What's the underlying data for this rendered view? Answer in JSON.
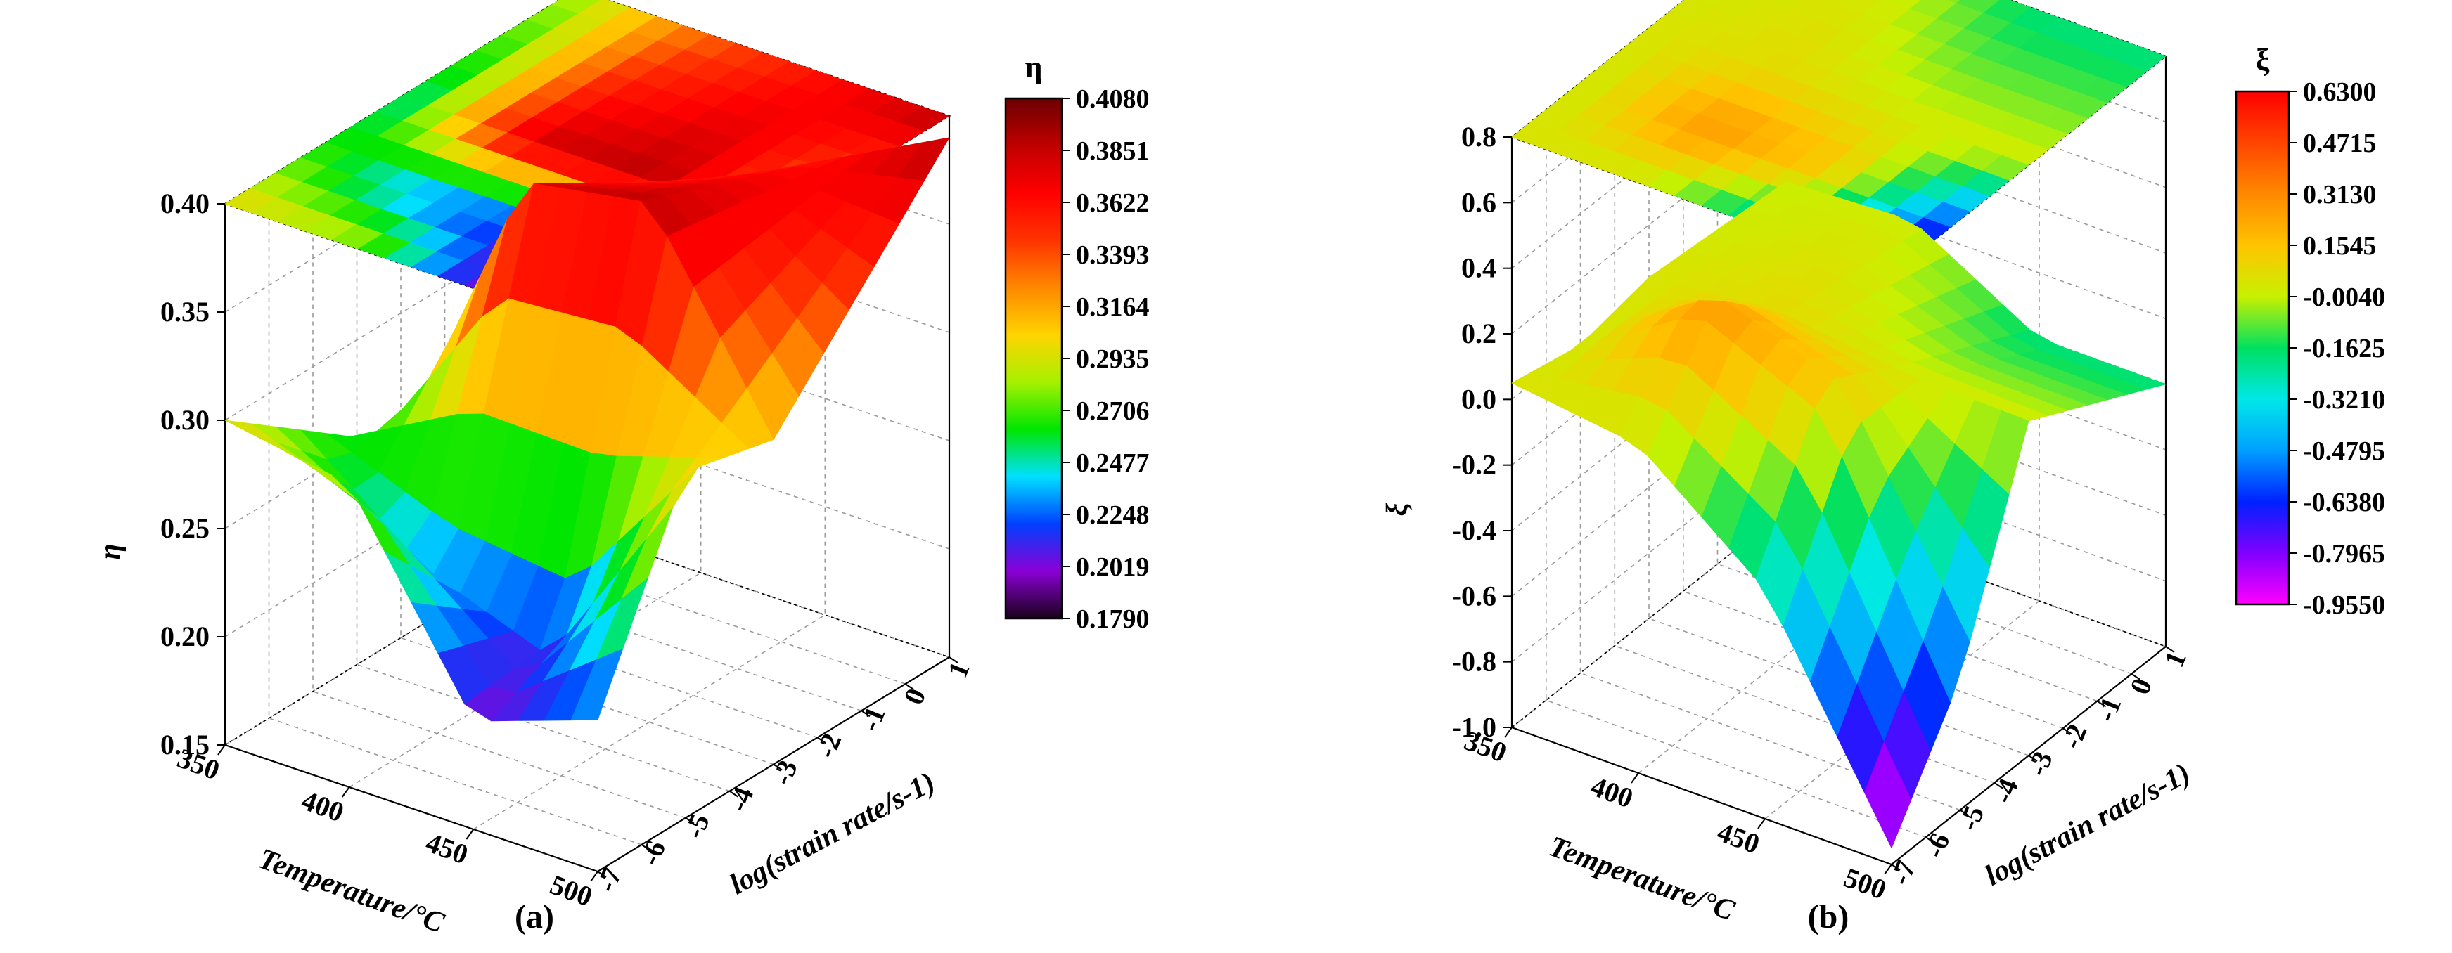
{
  "chart_data": [
    {
      "type": "surface3d",
      "panel_label": "(a)",
      "zlabel": "η",
      "xlabel": "Temperature/°C",
      "ylabel": "log(strain rate/s-1)",
      "x_ticks": [
        350,
        400,
        450,
        500
      ],
      "y_ticks": [
        1,
        0,
        -1,
        -2,
        -3,
        -4,
        -5,
        -6,
        -7
      ],
      "z_ticks": [
        0.15,
        0.2,
        0.25,
        0.3,
        0.35,
        0.4
      ],
      "zlim": [
        0.15,
        0.4
      ],
      "grid": true,
      "projection_on_top": true,
      "colorbar": {
        "title": "η",
        "ticks": [
          "0.4080",
          "0.3851",
          "0.3622",
          "0.3393",
          "0.3164",
          "0.2935",
          "0.2706",
          "0.2477",
          "0.2248",
          "0.2019",
          "0.1790"
        ],
        "colors": [
          "#6b0000",
          "#c00000",
          "#ff0000",
          "#ff3300",
          "#ff8800",
          "#ffd400",
          "#a8f000",
          "#00e600",
          "#00e0ff",
          "#0040ff",
          "#8a00d6",
          "#1a001a"
        ]
      },
      "surface": {
        "x": [
          350,
          400,
          450,
          500
        ],
        "y": [
          -7,
          -5,
          -3,
          1
        ],
        "z": [
          [
            0.3,
            0.27,
            0.24,
            0.28
          ],
          [
            0.29,
            0.22,
            0.38,
            0.33
          ],
          [
            0.2,
            0.21,
            0.39,
            0.36
          ],
          [
            0.22,
            0.31,
            0.3,
            0.39
          ]
        ]
      }
    },
    {
      "type": "surface3d",
      "panel_label": "(b)",
      "zlabel": "ξ",
      "xlabel": "Temperature/°C",
      "ylabel": "log(strain rate/s-1)",
      "x_ticks": [
        350,
        400,
        450,
        500
      ],
      "y_ticks": [
        1,
        0,
        -1,
        -2,
        -3,
        -4,
        -5,
        -6,
        -7
      ],
      "z_ticks": [
        -1.0,
        -0.8,
        -0.6,
        -0.4,
        -0.2,
        0.0,
        0.2,
        0.4,
        0.6,
        0.8
      ],
      "zlim": [
        -1.0,
        0.8
      ],
      "grid": true,
      "projection_on_top": true,
      "colorbar": {
        "title": "ξ",
        "ticks": [
          "0.6300",
          "0.4715",
          "0.3130",
          "0.1545",
          "-0.0040",
          "-0.1625",
          "-0.3210",
          "-0.4795",
          "-0.6380",
          "-0.7965",
          "-0.9550"
        ],
        "colors": [
          "#ff0000",
          "#ff4400",
          "#ff8800",
          "#ffc400",
          "#c8f000",
          "#00e060",
          "#00e8e8",
          "#00a0ff",
          "#0020ff",
          "#8000ff",
          "#ff00ff"
        ]
      },
      "surface": {
        "x": [
          350,
          400,
          450,
          500
        ],
        "y": [
          -7,
          -5,
          -3,
          1
        ],
        "z": [
          [
            0.05,
            0.0,
            0.04,
            0.0
          ],
          [
            0.0,
            0.3,
            0.08,
            0.02
          ],
          [
            -0.3,
            0.15,
            0.03,
            -0.2
          ],
          [
            -0.95,
            -0.6,
            0.02,
            -0.2
          ]
        ]
      }
    }
  ]
}
